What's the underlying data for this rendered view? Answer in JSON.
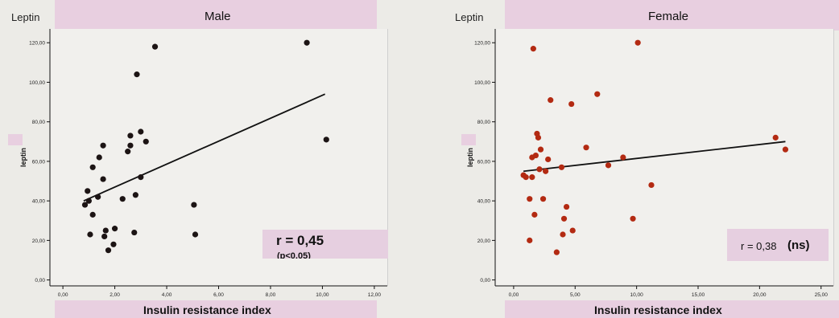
{
  "colors": {
    "male_point": "#1c1414",
    "female_point": "#b32a12",
    "line": "#111111",
    "band": "#e8cfe0"
  },
  "chart_data": [
    {
      "type": "scatter",
      "title": "Male",
      "corner_label": "Leptin",
      "xlabel": "Insulin resistance index",
      "ylabel": "leptin",
      "xlim": [
        -0.5,
        12.5
      ],
      "ylim": [
        -3,
        127
      ],
      "xticks": [
        "0,00",
        "2,00",
        "4,00",
        "6,00",
        "8,00",
        "10,00",
        "12,00"
      ],
      "xtick_values": [
        0,
        2,
        4,
        6,
        8,
        10,
        12
      ],
      "yticks": [
        "0,00",
        "20,00",
        "40,00",
        "60,00",
        "80,00",
        "100,00",
        "120,00"
      ],
      "ytick_values": [
        0,
        20,
        40,
        60,
        80,
        100,
        120
      ],
      "annotation_r": "r = 0,45",
      "annotation_p": "(p<0,05)",
      "fit_line": {
        "x": [
          0.8,
          10.1
        ],
        "y": [
          40,
          94
        ]
      },
      "points": [
        {
          "x": 0.85,
          "y": 38
        },
        {
          "x": 0.95,
          "y": 45
        },
        {
          "x": 1.0,
          "y": 40
        },
        {
          "x": 1.05,
          "y": 23
        },
        {
          "x": 1.15,
          "y": 33
        },
        {
          "x": 1.15,
          "y": 57
        },
        {
          "x": 1.35,
          "y": 42
        },
        {
          "x": 1.4,
          "y": 62
        },
        {
          "x": 1.55,
          "y": 68
        },
        {
          "x": 1.55,
          "y": 51
        },
        {
          "x": 1.6,
          "y": 22
        },
        {
          "x": 1.65,
          "y": 25
        },
        {
          "x": 1.75,
          "y": 15
        },
        {
          "x": 1.95,
          "y": 18
        },
        {
          "x": 2.0,
          "y": 26
        },
        {
          "x": 2.3,
          "y": 41
        },
        {
          "x": 2.5,
          "y": 65
        },
        {
          "x": 2.6,
          "y": 68
        },
        {
          "x": 2.6,
          "y": 73
        },
        {
          "x": 2.75,
          "y": 24
        },
        {
          "x": 2.8,
          "y": 43
        },
        {
          "x": 2.85,
          "y": 104
        },
        {
          "x": 3.0,
          "y": 52
        },
        {
          "x": 3.0,
          "y": 75
        },
        {
          "x": 3.2,
          "y": 70
        },
        {
          "x": 3.55,
          "y": 118
        },
        {
          "x": 5.05,
          "y": 38
        },
        {
          "x": 5.1,
          "y": 23
        },
        {
          "x": 9.4,
          "y": 120
        },
        {
          "x": 10.15,
          "y": 71
        }
      ]
    },
    {
      "type": "scatter",
      "title": "Female",
      "corner_label": "Leptin",
      "xlabel": "Insulin resistance index",
      "ylabel": "leptin",
      "xlim": [
        -1.5,
        26
      ],
      "ylim": [
        -3,
        127
      ],
      "xticks": [
        "0,00",
        "5,00",
        "10,00",
        "15,00",
        "20,00",
        "25,00"
      ],
      "xtick_values": [
        0,
        5,
        10,
        15,
        20,
        25
      ],
      "yticks": [
        "0,00",
        "20,00",
        "40,00",
        "60,00",
        "80,00",
        "100,00",
        "120,00"
      ],
      "ytick_values": [
        0,
        20,
        40,
        60,
        80,
        100,
        120
      ],
      "annotation_r": "r = 0,38",
      "annotation_ns": "(ns)",
      "fit_line": {
        "x": [
          0.8,
          22.1
        ],
        "y": [
          55,
          70
        ]
      },
      "points": [
        {
          "x": 0.8,
          "y": 53
        },
        {
          "x": 1.0,
          "y": 52
        },
        {
          "x": 1.3,
          "y": 41
        },
        {
          "x": 1.3,
          "y": 20
        },
        {
          "x": 1.5,
          "y": 52
        },
        {
          "x": 1.5,
          "y": 62
        },
        {
          "x": 1.6,
          "y": 117
        },
        {
          "x": 1.7,
          "y": 33
        },
        {
          "x": 1.8,
          "y": 63
        },
        {
          "x": 1.9,
          "y": 74
        },
        {
          "x": 2.0,
          "y": 72
        },
        {
          "x": 2.1,
          "y": 56
        },
        {
          "x": 2.2,
          "y": 66
        },
        {
          "x": 2.4,
          "y": 41
        },
        {
          "x": 2.6,
          "y": 55
        },
        {
          "x": 2.8,
          "y": 61
        },
        {
          "x": 3.0,
          "y": 91
        },
        {
          "x": 3.5,
          "y": 14
        },
        {
          "x": 3.9,
          "y": 57
        },
        {
          "x": 4.0,
          "y": 23
        },
        {
          "x": 4.1,
          "y": 31
        },
        {
          "x": 4.3,
          "y": 37
        },
        {
          "x": 4.7,
          "y": 89
        },
        {
          "x": 4.8,
          "y": 25
        },
        {
          "x": 5.9,
          "y": 67
        },
        {
          "x": 6.8,
          "y": 94
        },
        {
          "x": 7.7,
          "y": 58
        },
        {
          "x": 8.9,
          "y": 62
        },
        {
          "x": 9.7,
          "y": 31
        },
        {
          "x": 10.1,
          "y": 120
        },
        {
          "x": 11.2,
          "y": 48
        },
        {
          "x": 21.3,
          "y": 72
        },
        {
          "x": 22.1,
          "y": 66
        }
      ]
    }
  ]
}
